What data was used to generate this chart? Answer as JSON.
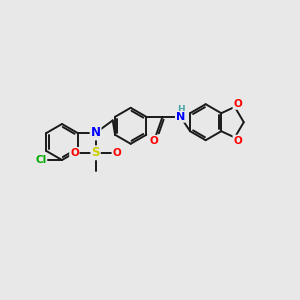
{
  "background_color": "#e8e8e8",
  "bond_color": "#1a1a1a",
  "atom_colors": {
    "N": "#0000ff",
    "O": "#ff0000",
    "S": "#cccc00",
    "Cl": "#00aa00",
    "H": "#4da6a6",
    "C": "#1a1a1a"
  },
  "figsize": [
    3.0,
    3.0
  ],
  "dpi": 100
}
